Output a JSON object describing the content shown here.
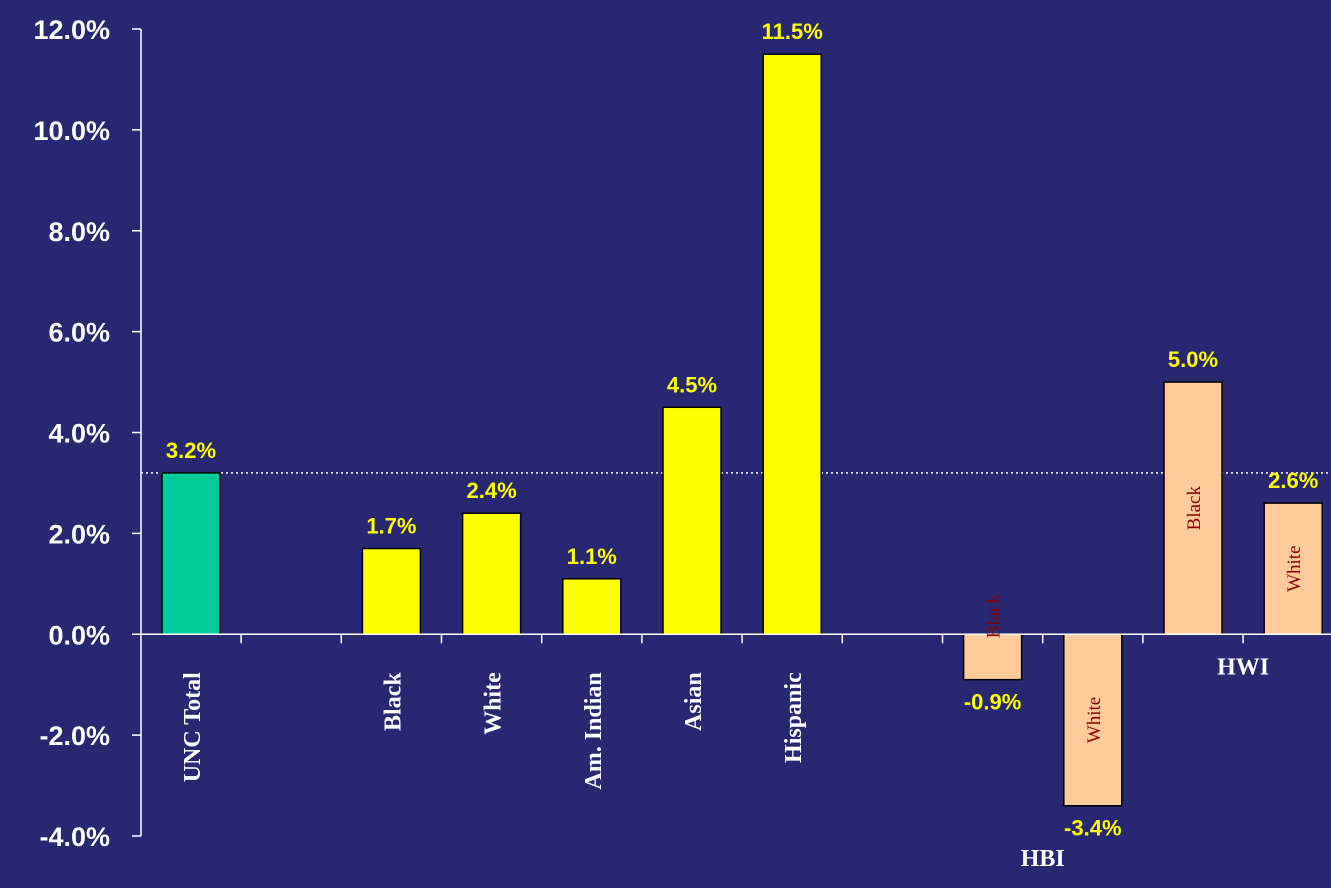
{
  "chart_data": {
    "type": "bar",
    "ylim": [
      -4,
      12
    ],
    "y_ticks": [
      {
        "value": 12,
        "label": "12.0%"
      },
      {
        "value": 10,
        "label": "10.0%"
      },
      {
        "value": 8,
        "label": "8.0%"
      },
      {
        "value": 6,
        "label": "6.0%"
      },
      {
        "value": 4,
        "label": "4.0%"
      },
      {
        "value": 2,
        "label": "2.0%"
      },
      {
        "value": 0,
        "label": "0.0%"
      },
      {
        "value": -2,
        "label": "-2.0%"
      },
      {
        "value": -4,
        "label": "-4.0%"
      }
    ],
    "reference_line": {
      "value": 3.2,
      "style": "dotted",
      "color": "#ffffff"
    },
    "bars": [
      {
        "slot": 0,
        "category": "UNC Total",
        "value": 3.2,
        "label": "3.2%",
        "color": "#00cc99",
        "inside_label": ""
      },
      {
        "slot": 2,
        "category": "Black",
        "value": 1.7,
        "label": "1.7%",
        "color": "#ffff00",
        "inside_label": ""
      },
      {
        "slot": 3,
        "category": "White",
        "value": 2.4,
        "label": "2.4%",
        "color": "#ffff00",
        "inside_label": ""
      },
      {
        "slot": 4,
        "category": "Am. Indian",
        "value": 1.1,
        "label": "1.1%",
        "color": "#ffff00",
        "inside_label": ""
      },
      {
        "slot": 5,
        "category": "Asian",
        "value": 4.5,
        "label": "4.5%",
        "color": "#ffff00",
        "inside_label": ""
      },
      {
        "slot": 6,
        "category": "Hispanic",
        "value": 11.5,
        "label": "11.5%",
        "color": "#ffff00",
        "inside_label": ""
      },
      {
        "slot": 8,
        "category": "",
        "value": -0.9,
        "label": "-0.9%",
        "color": "#ffcc99",
        "inside_label": "Black"
      },
      {
        "slot": 9,
        "category": "",
        "value": -3.4,
        "label": "-3.4%",
        "color": "#ffcc99",
        "inside_label": "White"
      },
      {
        "slot": 10,
        "category": "",
        "value": 5.0,
        "label": "5.0%",
        "color": "#ffcc99",
        "inside_label": "Black"
      },
      {
        "slot": 11,
        "category": "",
        "value": 2.6,
        "label": "2.6%",
        "color": "#ffcc99",
        "inside_label": "White"
      }
    ],
    "group_labels": [
      {
        "text": "HBI",
        "slots": [
          8,
          9
        ]
      },
      {
        "text": "HWI",
        "slots": [
          10,
          11
        ]
      }
    ],
    "grid": false,
    "legend": "none",
    "colors": {
      "background": "#272871",
      "axis": "#ffffff",
      "data_label": "#ffff00",
      "inside_label": "#8b0000"
    }
  }
}
